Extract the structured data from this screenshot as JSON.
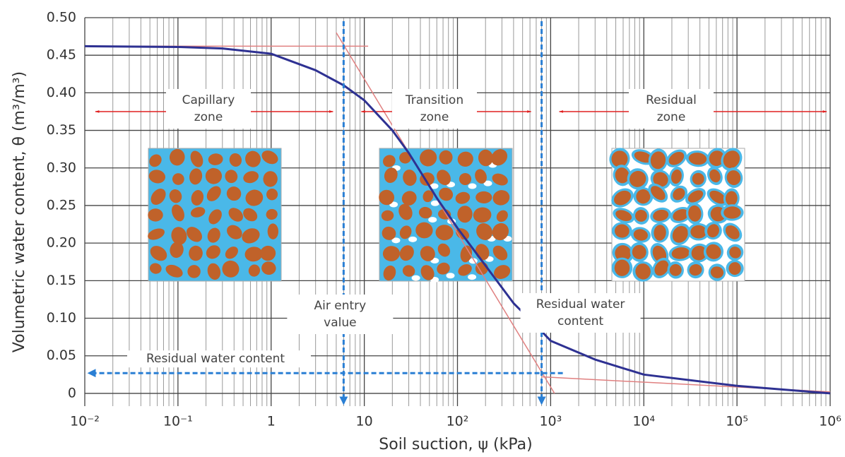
{
  "chart_data": {
    "type": "line",
    "xlabel": "Soil suction, ψ (kPa)",
    "ylabel": "Volumetric water content, θ (m³/m³)",
    "xscale": "log",
    "xlim": [
      0.01,
      1000000
    ],
    "ylim": [
      -0.017,
      0.5
    ],
    "xticks": [
      {
        "value": 0.01,
        "label": "10⁻²"
      },
      {
        "value": 0.1,
        "label": "10⁻¹"
      },
      1,
      10,
      {
        "value": 100,
        "label": "10²"
      },
      {
        "value": 1000,
        "label": "10³"
      },
      {
        "value": 10000,
        "label": "10⁴"
      },
      {
        "value": 100000,
        "label": "10⁵"
      },
      {
        "value": 1000000,
        "label": "10⁶"
      }
    ],
    "yticks": [
      0,
      0.05,
      {
        "value": 0.1,
        "label": "0.10"
      },
      0.15,
      {
        "value": 0.2,
        "label": "0.20"
      },
      0.25,
      {
        "value": 0.3,
        "label": "0.30"
      },
      0.35,
      {
        "value": 0.4,
        "label": "0.40"
      },
      0.45,
      {
        "value": 0.5,
        "label": "0.50"
      }
    ],
    "grid": true,
    "color": "#2e3192",
    "x": [
      0.01,
      0.1,
      0.3,
      1,
      3,
      6,
      10,
      20,
      30,
      60,
      100,
      200,
      400,
      700,
      1000,
      3000,
      10000,
      100000,
      1000000
    ],
    "values": [
      0.462,
      0.461,
      0.459,
      0.452,
      0.43,
      0.41,
      0.39,
      0.35,
      0.32,
      0.26,
      0.22,
      0.17,
      0.12,
      0.09,
      0.07,
      0.045,
      0.025,
      0.01,
      0
    ],
    "tangent_color": "#e08080",
    "tangents": [
      {
        "x": [
          0.01,
          11
        ],
        "values": [
          0.462,
          0.462
        ]
      },
      {
        "x": [
          5,
          1100
        ],
        "values": [
          0.48,
          0
        ]
      },
      {
        "x": [
          800,
          1000000
        ],
        "values": [
          0.022,
          0.002
        ]
      }
    ],
    "marker_color": "#2a7fd4",
    "zone_line_value": 0.375,
    "zone_line_color": "#e02020",
    "annotations": {
      "zones": [
        {
          "lines": [
            "Capillary",
            "zone"
          ]
        },
        {
          "lines": [
            "Transition",
            "zone"
          ]
        },
        {
          "lines": [
            "Residual",
            "zone"
          ]
        }
      ],
      "air_entry": {
        "value": 6,
        "lines": [
          "Air entry",
          "value"
        ]
      },
      "residual_suction": {
        "value": 800,
        "lines": [
          "Residual water",
          "content"
        ]
      },
      "residual_water_content": {
        "value": 0.027,
        "label": "Residual water content"
      }
    }
  }
}
